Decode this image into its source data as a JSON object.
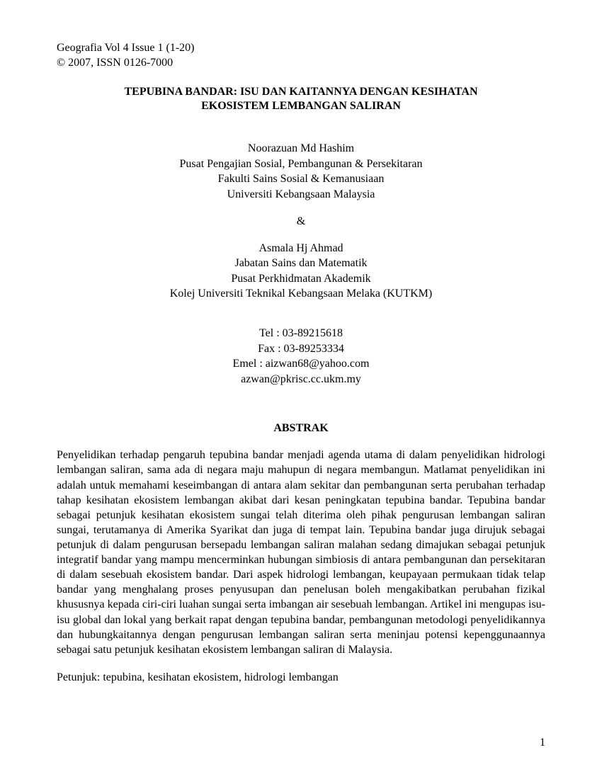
{
  "header": {
    "journal_line": "Geografia Vol 4 Issue 1 (1-20)",
    "copyright_line": "© 2007, ISSN 0126-7000"
  },
  "title": {
    "line1": "TEPUBINA BANDAR: ISU DAN KAITANNYA DENGAN KESIHATAN",
    "line2": "EKOSISTEM  LEMBANGAN SALIRAN"
  },
  "author1": {
    "name": "Noorazuan Md Hashim",
    "dept": "Pusat Pengajian Sosial, Pembangunan & Persekitaran",
    "faculty": "Fakulti Sains Sosial & Kemanusiaan",
    "university": "Universiti Kebangsaan Malaysia"
  },
  "ampersand": "&",
  "author2": {
    "name": "Asmala Hj Ahmad",
    "dept": "Jabatan Sains dan Matematik",
    "center": "Pusat Perkhidmatan Akademik",
    "university": "Kolej Universiti Teknikal Kebangsaan Melaka (KUTKM)"
  },
  "contact": {
    "tel": "Tel : 03-89215618",
    "fax": "Fax : 03-89253334",
    "email1": "Emel : aizwan68@yahoo.com",
    "email2": "azwan@pkrisc.cc.ukm.my"
  },
  "abstract": {
    "heading": "ABSTRAK",
    "body": "Penyelidikan terhadap pengaruh  tepubina bandar menjadi agenda utama di dalam penyelidikan hidrologi lembangan saliran, sama ada di negara maju mahupun di negara membangun. Matlamat penyelidikan ini adalah untuk memahami keseimbangan di antara alam sekitar dan pembangunan serta perubahan terhadap tahap kesihatan ekosistem lembangan akibat dari kesan peningkatan tepubina bandar. Tepubina bandar sebagai petunjuk kesihatan ekosistem sungai telah diterima oleh pihak pengurusan lembangan saliran sungai, terutamanya di Amerika Syarikat dan juga di tempat lain. Tepubina bandar juga dirujuk sebagai petunjuk di dalam pengurusan bersepadu lembangan saliran malahan sedang dimajukan sebagai petunjuk integratif bandar yang mampu mencerminkan hubungan simbiosis  di antara pembangunan dan persekitaran di dalam sesebuah ekosistem bandar. Dari aspek hidrologi lembangan, keupayaan permukaan tidak telap bandar yang menghalang proses penyusupan dan penelusan boleh mengakibatkan perubahan fizikal khususnya kepada ciri-ciri luahan sungai serta imbangan air sesebuah lembangan. Artikel ini mengupas isu-isu global dan lokal yang berkait rapat dengan tepubina bandar, pembangunan metodologi penyelidikannya dan hubungkaitannya dengan pengurusan lembangan saliran serta meninjau potensi kepenggunaannya sebagai satu petunjuk kesihatan ekosistem lembangan saliran di Malaysia."
  },
  "keywords": "Petunjuk: tepubina, kesihatan ekosistem, hidrologi lembangan",
  "page_number": "1"
}
